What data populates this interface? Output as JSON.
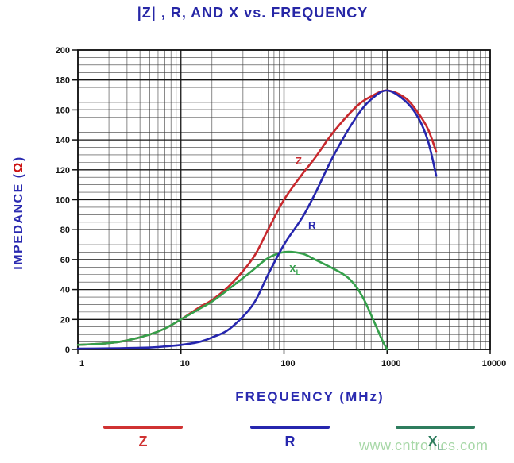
{
  "watermark": {
    "text": "www.cntronics.com",
    "color": "#a8d8a8"
  },
  "chart_data": {
    "type": "line",
    "title": "|Z| , R, AND X vs. FREQUENCY",
    "title_color": "#2626a6",
    "xlabel": "FREQUENCY (MHz)",
    "xlabel_color": "#2a2ab0",
    "ylabel": {
      "pre": "IMPEDANCE (",
      "unit": "Ω",
      "post": ")",
      "text_color": "#2a2ab0",
      "unit_color": "#cc1111"
    },
    "x_scale": "log",
    "xlim": [
      1,
      10000
    ],
    "ylim": [
      0,
      200
    ],
    "x_ticks": [
      1,
      10,
      100,
      1000,
      10000
    ],
    "x_tick_labels": [
      "1",
      "10",
      "100",
      "1000",
      "10000"
    ],
    "y_ticks": [
      0,
      20,
      40,
      60,
      80,
      100,
      120,
      140,
      160,
      180,
      200
    ],
    "y_minor_step": 5,
    "grid": {
      "on": true,
      "minor_color": "#3c3c3c",
      "major_color": "#161616"
    },
    "tick_label_color": "#111111",
    "legend_position": "bottom",
    "series": [
      {
        "name": "Z",
        "curve_label": "Z",
        "curve_label_sub": "",
        "color": "#c8282d",
        "points": [
          [
            1,
            3
          ],
          [
            2,
            4.2
          ],
          [
            3,
            6
          ],
          [
            5,
            10
          ],
          [
            7,
            14
          ],
          [
            10,
            20
          ],
          [
            15,
            28
          ],
          [
            20,
            33
          ],
          [
            30,
            43
          ],
          [
            50,
            61
          ],
          [
            70,
            80
          ],
          [
            100,
            100
          ],
          [
            150,
            117
          ],
          [
            200,
            128
          ],
          [
            300,
            145
          ],
          [
            500,
            162
          ],
          [
            700,
            169
          ],
          [
            1000,
            173
          ],
          [
            1500,
            168
          ],
          [
            2000,
            158
          ],
          [
            2500,
            147
          ],
          [
            3000,
            132
          ]
        ]
      },
      {
        "name": "X",
        "curve_label": "X",
        "curve_label_sub": "L",
        "color": "#35a04b",
        "points": [
          [
            1,
            3
          ],
          [
            2,
            4.2
          ],
          [
            3,
            6
          ],
          [
            5,
            10
          ],
          [
            7,
            14
          ],
          [
            10,
            20
          ],
          [
            15,
            27
          ],
          [
            20,
            32
          ],
          [
            30,
            41
          ],
          [
            50,
            53
          ],
          [
            70,
            61
          ],
          [
            100,
            65
          ],
          [
            150,
            64
          ],
          [
            200,
            60
          ],
          [
            300,
            54
          ],
          [
            400,
            49
          ],
          [
            500,
            42
          ],
          [
            600,
            33
          ],
          [
            700,
            23
          ],
          [
            800,
            14
          ],
          [
            900,
            6
          ],
          [
            1000,
            0
          ]
        ]
      },
      {
        "name": "R",
        "curve_label": "R",
        "curve_label_sub": "",
        "color": "#2626ae",
        "points": [
          [
            1,
            0.5
          ],
          [
            2,
            0.7
          ],
          [
            3,
            0.9
          ],
          [
            5,
            1.3
          ],
          [
            7,
            2
          ],
          [
            10,
            3
          ],
          [
            15,
            5
          ],
          [
            20,
            8
          ],
          [
            30,
            14
          ],
          [
            50,
            30
          ],
          [
            70,
            50
          ],
          [
            100,
            70
          ],
          [
            150,
            88
          ],
          [
            200,
            104
          ],
          [
            300,
            129
          ],
          [
            500,
            155
          ],
          [
            700,
            167
          ],
          [
            1000,
            173
          ],
          [
            1500,
            166
          ],
          [
            2000,
            155
          ],
          [
            2500,
            139
          ],
          [
            3000,
            116
          ]
        ]
      }
    ],
    "legend": [
      {
        "label": "Z",
        "color": "#d03232",
        "text_color": "#d03232"
      },
      {
        "label": "R",
        "color": "#2626ae",
        "text_color": "#2626ae"
      },
      {
        "label": "X",
        "label_sub": "L",
        "color": "#2e7d5e",
        "text_color": "#2e7d5e"
      }
    ]
  }
}
